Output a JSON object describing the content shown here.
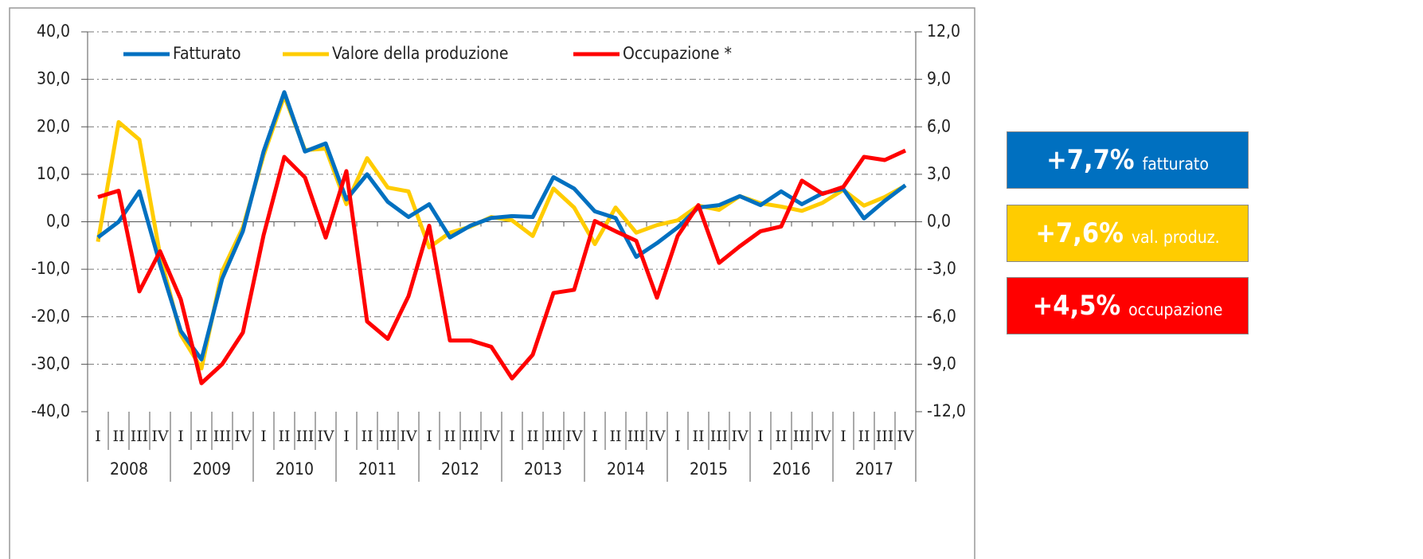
{
  "chart_data": {
    "type": "line",
    "categories": [
      "I",
      "II",
      "III",
      "IV",
      "I",
      "II",
      "III",
      "IV",
      "I",
      "II",
      "III",
      "IV",
      "I",
      "II",
      "III",
      "IV",
      "I",
      "II",
      "III",
      "IV",
      "I",
      "II",
      "III",
      "IV",
      "I",
      "II",
      "III",
      "IV",
      "I",
      "II",
      "III",
      "IV",
      "I",
      "II",
      "III",
      "IV",
      "I",
      "II",
      "III",
      "IV"
    ],
    "groups": [
      "2008",
      "2009",
      "2010",
      "2011",
      "2012",
      "2013",
      "2014",
      "2015",
      "2016",
      "2017"
    ],
    "series": [
      {
        "name": "Fatturato",
        "color": "#0070c0",
        "values": [
          -3.3,
          0,
          6.4,
          -9,
          -23,
          -29,
          -12,
          -2,
          14.8,
          27.3,
          14.8,
          16.5,
          4.7,
          10,
          4.2,
          1,
          3.7,
          -3.3,
          -0.8,
          0.8,
          1.2,
          1.0,
          9.4,
          7.0,
          2.2,
          0.8,
          -7.4,
          -4.5,
          -1.2,
          3.0,
          3.5,
          5.4,
          3.5,
          6.4,
          3.7,
          6.0,
          6.9,
          0.7,
          4.4,
          7.7
        ]
      },
      {
        "name": "Valore della produzione",
        "color": "#ffcc00",
        "values": [
          -4.2,
          21,
          17.3,
          -7,
          -23.8,
          -30.9,
          -10.4,
          -1.2,
          14,
          26.5,
          15.1,
          15.4,
          3.7,
          13.4,
          7.2,
          6.4,
          -5.4,
          -2.3,
          -1.0,
          1.0,
          0.3,
          -3.0,
          7.0,
          3.0,
          -4.7,
          3.0,
          -2.3,
          -0.7,
          0.3,
          3.4,
          2.5,
          5.4,
          3.9,
          3.2,
          2.3,
          4.0,
          6.7,
          3.4,
          5.2,
          7.6
        ]
      },
      {
        "name": "Occupazione *",
        "color": "#ff0000",
        "axis": "y2",
        "values": [
          1.56,
          1.96,
          -4.4,
          -1.86,
          -4.9,
          -10.2,
          -9.0,
          -7.0,
          -0.85,
          4.1,
          2.8,
          -1.0,
          3.2,
          -6.3,
          -7.4,
          -4.7,
          -0.25,
          -7.5,
          -7.5,
          -7.9,
          -9.9,
          -8.4,
          -4.5,
          -4.3,
          0.05,
          -0.6,
          -1.2,
          -4.8,
          -0.9,
          1.05,
          -2.6,
          -1.55,
          -0.6,
          -0.3,
          2.6,
          1.76,
          2.2,
          4.1,
          3.9,
          4.5
        ]
      }
    ],
    "ylim": [
      -40,
      40
    ],
    "yticks": [
      {
        "value": -40,
        "label": "-40,0"
      },
      {
        "value": -30,
        "label": "-30,0"
      },
      {
        "value": -20,
        "label": "-20,0"
      },
      {
        "value": -10,
        "label": "-10,0"
      },
      {
        "value": 0,
        "label": "0,0"
      },
      {
        "value": 10,
        "label": "10,0"
      },
      {
        "value": 20,
        "label": "20,0"
      },
      {
        "value": 30,
        "label": "30,0"
      },
      {
        "value": 40,
        "label": "40,0"
      }
    ],
    "y2lim": [
      -12,
      12
    ],
    "y2ticks": [
      {
        "value": -12,
        "label": "-12,0"
      },
      {
        "value": -9,
        "label": "-9,0"
      },
      {
        "value": -6,
        "label": "-6,0"
      },
      {
        "value": -3,
        "label": "-3,0"
      },
      {
        "value": 0,
        "label": "0,0"
      },
      {
        "value": 3,
        "label": "3,0"
      },
      {
        "value": 6,
        "label": "6,0"
      },
      {
        "value": 9,
        "label": "9,0"
      },
      {
        "value": 12,
        "label": "12,0"
      }
    ],
    "grid": true
  },
  "badges": [
    {
      "value_text": "+7,7%",
      "label": "fatturato",
      "color": "#0070c0"
    },
    {
      "value_text": "+7,6%",
      "label": "val. produz.",
      "color": "#ffcc00"
    },
    {
      "value_text": "+4,5%",
      "label": "occupazione",
      "color": "#ff0000"
    }
  ]
}
